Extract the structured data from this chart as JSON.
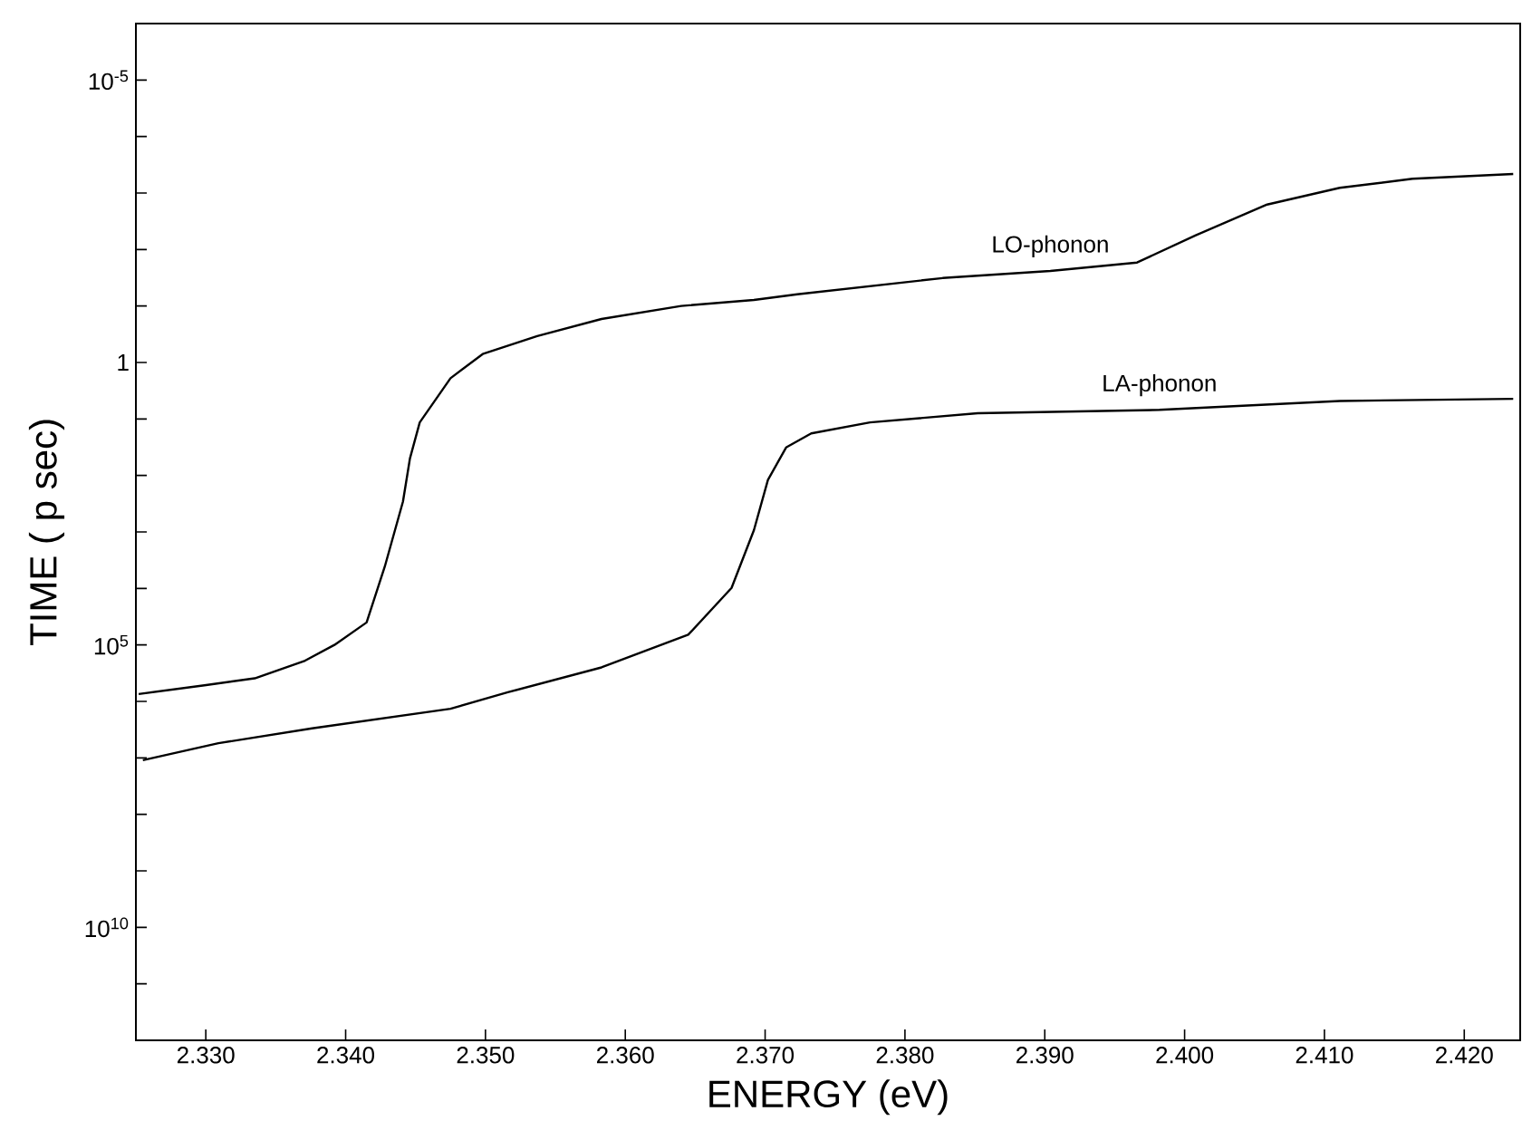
{
  "chart_data": {
    "type": "line",
    "xlabel": "ENERGY  (eV)",
    "ylabel": "TIME ( p sec)",
    "log": "y",
    "xlim": [
      2.325,
      2.424
    ],
    "ylim": [
      1000000000000.0,
      1e-06
    ],
    "xticks": [
      {
        "value": 2.33,
        "label": "2.330"
      },
      {
        "value": 2.34,
        "label": "2.340"
      },
      {
        "value": 2.35,
        "label": "2.350"
      },
      {
        "value": 2.36,
        "label": "2.360"
      },
      {
        "value": 2.37,
        "label": "2.370"
      },
      {
        "value": 2.38,
        "label": "2.380"
      },
      {
        "value": 2.39,
        "label": "2.390"
      },
      {
        "value": 2.4,
        "label": "2.400"
      },
      {
        "value": 2.41,
        "label": "2.410"
      },
      {
        "value": 2.42,
        "label": "2.420"
      }
    ],
    "yticks": [
      {
        "value": 1e-05,
        "label": "10$^{-5}$"
      },
      {
        "value": 0.0001,
        "label": null
      },
      {
        "value": 0.001,
        "label": null
      },
      {
        "value": 0.01,
        "label": null
      },
      {
        "value": 0.1,
        "label": null
      },
      1,
      {
        "value": 10.0,
        "label": null
      },
      {
        "value": 100.0,
        "label": null
      },
      {
        "value": 1000.0,
        "label": null
      },
      {
        "value": 10000.0,
        "label": null
      },
      {
        "value": 100000.0,
        "label": "10$^{5}$"
      },
      {
        "value": 1000000.0,
        "label": null
      },
      {
        "value": 10000000.0,
        "label": null
      },
      {
        "value": 100000000.0,
        "label": null
      },
      {
        "value": 1000000000.0,
        "label": null
      },
      {
        "value": 10000000000.0,
        "label": "10$^{10}$"
      },
      {
        "value": 100000000000.0,
        "label": null
      }
    ],
    "series": [
      {
        "name": "LO-phonon",
        "color": "#000000",
        "x": [
          2.3252,
          2.3299,
          2.3335,
          2.3371,
          2.3392,
          2.3415,
          2.3428,
          2.3441,
          2.3446,
          2.3453,
          2.3475,
          2.3498,
          2.3537,
          2.3583,
          2.364,
          2.3692,
          2.3723,
          2.3827,
          2.3904,
          2.3966,
          2.4008,
          2.4059,
          2.4111,
          2.4163,
          2.4235
        ],
        "values": [
          740000.0,
          520000.0,
          390000.0,
          190000.0,
          100000.0,
          40000.0,
          4100.0,
          290,
          50,
          11.5,
          1.9,
          0.71,
          0.34,
          0.17,
          0.1,
          0.078,
          0.062,
          0.032,
          0.024,
          0.017,
          0.0056,
          0.0016,
          0.00081,
          0.00056,
          0.00046
        ]
      },
      {
        "name": "LA-phonon",
        "color": "#000000",
        "x": [
          2.3255,
          2.3309,
          2.3376,
          2.3475,
          2.3516,
          2.3583,
          2.3645,
          2.3676,
          2.3692,
          2.3702,
          2.3715,
          2.3733,
          2.3775,
          2.3852,
          2.3982,
          2.4111,
          2.4235
        ],
        "values": [
          11000000.0,
          5500000.0,
          3000000.0,
          1350000.0,
          690000.0,
          250000.0,
          66000.0,
          9800.0,
          930,
          120,
          32,
          18,
          11.5,
          7.9,
          6.9,
          4.8,
          4.4
        ]
      }
    ]
  }
}
